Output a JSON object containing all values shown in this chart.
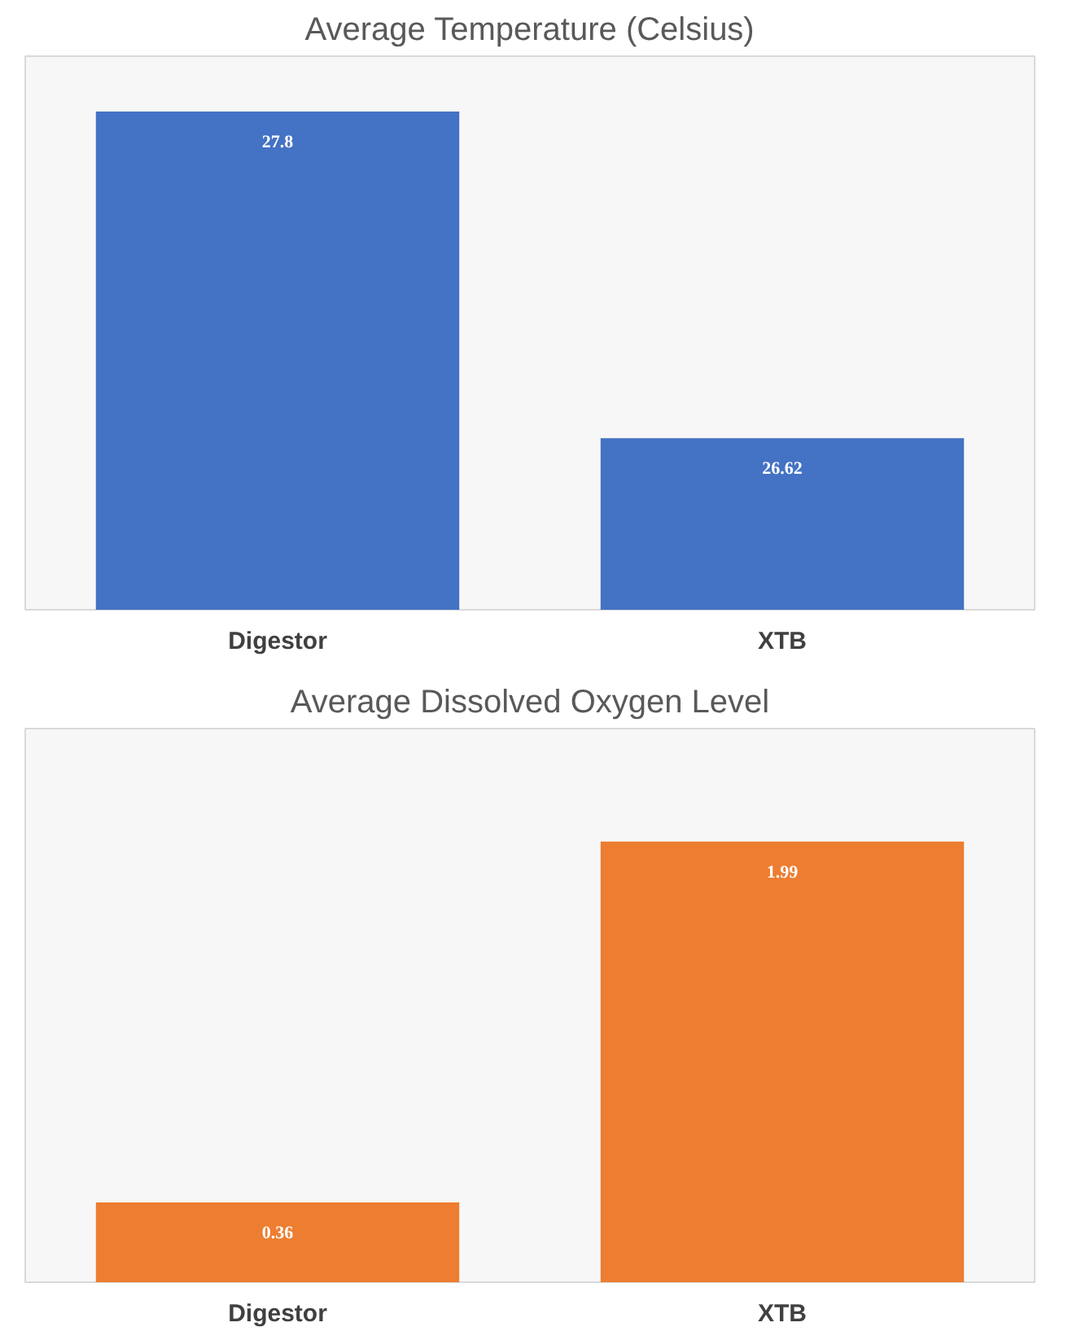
{
  "chart_data": [
    {
      "type": "bar",
      "title": "Average Temperature (Celsius)",
      "categories": [
        "Digestor",
        "XTB"
      ],
      "values": [
        27.8,
        26.62
      ],
      "color": "#4472c4",
      "ylim": [
        26,
        28
      ],
      "data_labels": true,
      "tick_labels": "x",
      "grid": false
    },
    {
      "type": "bar",
      "title": "Average Dissolved Oxygen Level",
      "categories": [
        "Digestor",
        "XTB"
      ],
      "values": [
        0.36,
        1.99
      ],
      "color": "#ed7d31",
      "ylim": [
        0,
        2.5
      ],
      "data_labels": true,
      "tick_labels": "x",
      "grid": false
    }
  ]
}
